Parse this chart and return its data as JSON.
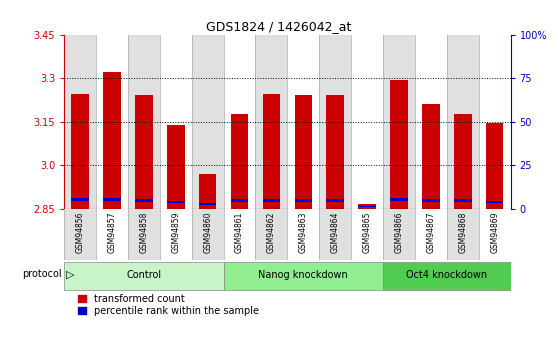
{
  "title": "GDS1824 / 1426042_at",
  "samples": [
    "GSM94856",
    "GSM94857",
    "GSM94858",
    "GSM94859",
    "GSM94860",
    "GSM94861",
    "GSM94862",
    "GSM94863",
    "GSM94864",
    "GSM94865",
    "GSM94866",
    "GSM94867",
    "GSM94868",
    "GSM94869"
  ],
  "red_values": [
    3.245,
    3.32,
    3.24,
    3.14,
    2.97,
    3.175,
    3.245,
    3.24,
    3.24,
    2.865,
    3.295,
    3.21,
    3.175,
    3.145
  ],
  "blue_bottom": [
    2.875,
    2.875,
    2.873,
    2.868,
    2.862,
    2.872,
    2.872,
    2.872,
    2.872,
    2.856,
    2.875,
    2.872,
    2.873,
    2.868
  ],
  "blue_heights": [
    0.012,
    0.012,
    0.011,
    0.009,
    0.008,
    0.011,
    0.011,
    0.011,
    0.011,
    0.004,
    0.011,
    0.011,
    0.011,
    0.009
  ],
  "y_min": 2.85,
  "y_max": 3.45,
  "y_ticks_left": [
    2.85,
    3.0,
    3.15,
    3.3,
    3.45
  ],
  "y_ticks_right_labels": [
    "0",
    "25",
    "50",
    "75",
    "100%"
  ],
  "groups": [
    {
      "label": "Control",
      "start": 0,
      "end": 5,
      "color": "#c8f5c8"
    },
    {
      "label": "Nanog knockdown",
      "start": 5,
      "end": 10,
      "color": "#90ee90"
    },
    {
      "label": "Oct4 knockdown",
      "start": 10,
      "end": 14,
      "color": "#50cd50"
    }
  ],
  "bar_color_red": "#cc0000",
  "bar_color_blue": "#0000cc",
  "bar_width": 0.55,
  "col_bg_light": "#e0e0e0",
  "col_bg_white": "#ffffff",
  "grid_color": "#000000",
  "left_axis_color": "#cc0000",
  "right_axis_color": "#0000cc",
  "legend_red_label": "transformed count",
  "legend_blue_label": "percentile rank within the sample",
  "protocol_label": "protocol",
  "figure_bg": "#ffffff"
}
